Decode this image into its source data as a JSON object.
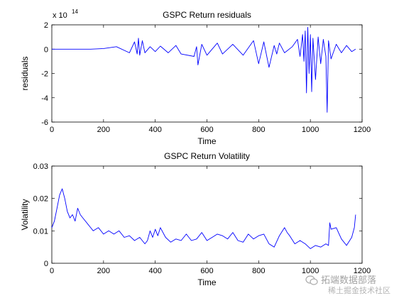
{
  "chart_data": [
    {
      "type": "line",
      "title": "GSPC Return residuals",
      "xlabel": "Time",
      "ylabel": "residuals",
      "exponent_label": "x 10",
      "exponent_power": "14",
      "xlim": [
        0,
        1200
      ],
      "ylim": [
        -6,
        2
      ],
      "xticks": [
        "0",
        "200",
        "400",
        "600",
        "800",
        "1000",
        "1200"
      ],
      "yticks": [
        "-6",
        "-4",
        "-2",
        "0",
        "2"
      ],
      "xtick_values": [
        0,
        200,
        400,
        600,
        800,
        1000,
        1200
      ],
      "ytick_values": [
        -6,
        -4,
        -2,
        0,
        2
      ],
      "series": [
        {
          "color": "#0000ff",
          "x": [
            0,
            150,
            200,
            250,
            300,
            320,
            330,
            335,
            340,
            350,
            360,
            380,
            400,
            420,
            450,
            480,
            500,
            550,
            560,
            565,
            580,
            600,
            640,
            660,
            700,
            740,
            780,
            800,
            820,
            840,
            860,
            870,
            880,
            900,
            930,
            950,
            960,
            970,
            975,
            980,
            985,
            990,
            995,
            1000,
            1005,
            1010,
            1020,
            1030,
            1040,
            1050,
            1060,
            1065,
            1070,
            1080,
            1100,
            1120,
            1140,
            1160,
            1175
          ],
          "values": [
            0,
            0,
            0.05,
            0.2,
            -0.3,
            0.6,
            -0.4,
            0.9,
            -0.5,
            0.7,
            -0.3,
            0.2,
            -0.2,
            0.25,
            -0.3,
            0.3,
            -0.4,
            -0.6,
            0.2,
            -1.3,
            0.4,
            -0.5,
            0.5,
            -0.4,
            0.4,
            -0.5,
            0.7,
            -1.2,
            0.6,
            -1.5,
            0.3,
            -0.4,
            0.5,
            -0.3,
            0.2,
            0.8,
            -0.6,
            1.2,
            -1.0,
            1.5,
            -3.6,
            1.8,
            -2.0,
            1.2,
            -3.5,
            0.9,
            -2.5,
            1.0,
            -1.2,
            0.8,
            -0.6,
            -5.2,
            0.7,
            -0.8,
            0.4,
            -0.3,
            0.3,
            -0.2,
            0
          ]
        }
      ]
    },
    {
      "type": "line",
      "title": "GSPC Return Volatility",
      "xlabel": "Time",
      "ylabel": "Volatility",
      "xlim": [
        0,
        1200
      ],
      "ylim": [
        0,
        0.03
      ],
      "xticks": [
        "0",
        "200",
        "400",
        "600",
        "800",
        "1000",
        "1200"
      ],
      "yticks": [
        "0",
        "0.01",
        "0.02",
        "0.03"
      ],
      "xtick_values": [
        0,
        200,
        400,
        600,
        800,
        1000,
        1200
      ],
      "ytick_values": [
        0,
        0.01,
        0.02,
        0.03
      ],
      "series": [
        {
          "color": "#0000ff",
          "x": [
            0,
            10,
            20,
            30,
            40,
            50,
            60,
            70,
            80,
            90,
            100,
            110,
            120,
            140,
            160,
            180,
            200,
            220,
            240,
            260,
            280,
            300,
            320,
            340,
            360,
            370,
            380,
            390,
            400,
            410,
            420,
            440,
            460,
            480,
            500,
            520,
            540,
            560,
            580,
            600,
            620,
            640,
            660,
            680,
            700,
            720,
            740,
            760,
            780,
            800,
            820,
            840,
            860,
            880,
            900,
            910,
            920,
            940,
            960,
            980,
            1000,
            1020,
            1040,
            1060,
            1070,
            1075,
            1080,
            1100,
            1120,
            1140,
            1160,
            1170,
            1175
          ],
          "values": [
            0.011,
            0.013,
            0.017,
            0.021,
            0.023,
            0.02,
            0.016,
            0.014,
            0.015,
            0.013,
            0.017,
            0.015,
            0.014,
            0.012,
            0.01,
            0.011,
            0.009,
            0.01,
            0.009,
            0.01,
            0.008,
            0.0085,
            0.007,
            0.008,
            0.006,
            0.007,
            0.01,
            0.008,
            0.0105,
            0.0085,
            0.011,
            0.008,
            0.0065,
            0.0075,
            0.007,
            0.009,
            0.007,
            0.0075,
            0.0095,
            0.007,
            0.008,
            0.009,
            0.0085,
            0.0075,
            0.0095,
            0.007,
            0.0065,
            0.009,
            0.0075,
            0.0085,
            0.009,
            0.006,
            0.005,
            0.0085,
            0.011,
            0.0095,
            0.0085,
            0.006,
            0.007,
            0.006,
            0.0045,
            0.0055,
            0.005,
            0.006,
            0.0055,
            0.0125,
            0.0105,
            0.011,
            0.0075,
            0.0055,
            0.008,
            0.011,
            0.015
          ]
        }
      ]
    }
  ],
  "watermark": {
    "line1": "拓端数据部落",
    "line2": "稀土掘金技术社区"
  }
}
